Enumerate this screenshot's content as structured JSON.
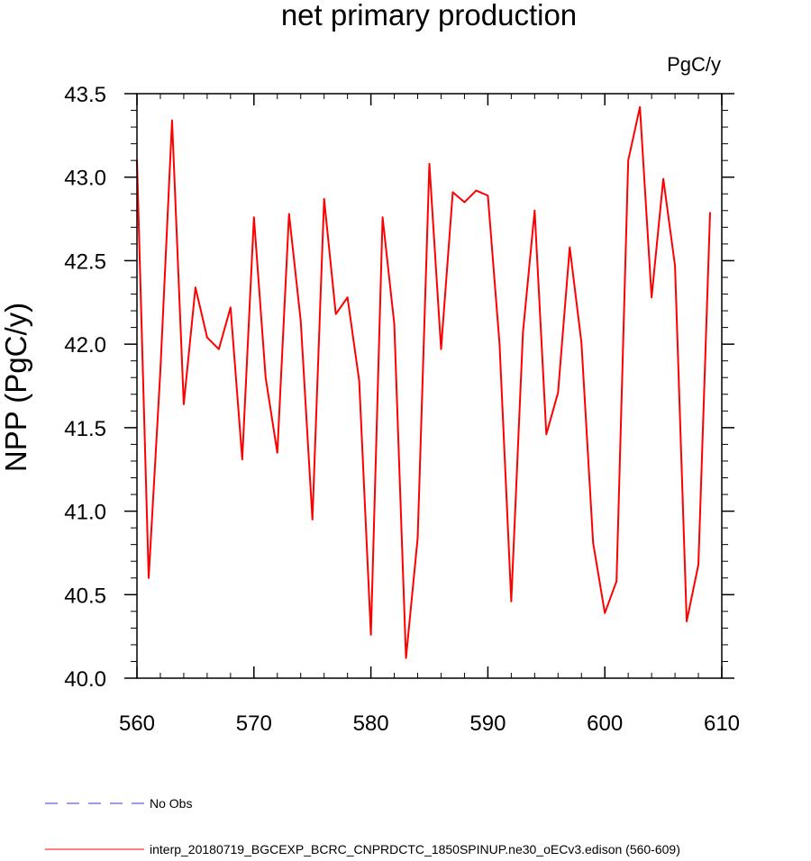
{
  "chart_data": {
    "type": "line",
    "title": "net primary production",
    "units": "PgC/y",
    "ylabel": "NPP  (PgC/y)",
    "xlabel": "",
    "xlim": [
      560,
      610
    ],
    "ylim": [
      40.0,
      43.5
    ],
    "x_ticks": [
      "560",
      "570",
      "580",
      "590",
      "600",
      "610"
    ],
    "y_ticks": [
      "40.0",
      "40.5",
      "41.0",
      "41.5",
      "42.0",
      "42.5",
      "43.0",
      "43.5"
    ],
    "grid": false,
    "legend_position": "bottom",
    "series": [
      {
        "name": "No Obs",
        "color": "#0000ff",
        "style": "dashed",
        "x": [],
        "values": []
      },
      {
        "name": "interp_20180719_BGCEXP_BCRC_CNPRDCTC_1850SPINUP.ne30_oECv3.edison (560-609)",
        "color": "#ff0000",
        "style": "solid",
        "x": [
          560,
          561,
          562,
          563,
          564,
          565,
          566,
          567,
          568,
          569,
          570,
          571,
          572,
          573,
          574,
          575,
          576,
          577,
          578,
          579,
          580,
          581,
          582,
          583,
          584,
          585,
          586,
          587,
          588,
          589,
          590,
          591,
          592,
          593,
          594,
          595,
          596,
          597,
          598,
          599,
          600,
          601,
          602,
          603,
          604,
          605,
          606,
          607,
          608,
          609
        ],
        "values": [
          43.1,
          40.6,
          41.84,
          43.34,
          41.64,
          42.34,
          42.04,
          41.97,
          42.22,
          41.31,
          42.76,
          41.8,
          41.35,
          42.78,
          42.14,
          40.95,
          42.87,
          42.18,
          42.28,
          41.78,
          40.26,
          42.76,
          42.12,
          40.12,
          40.84,
          43.08,
          41.97,
          42.91,
          42.85,
          42.92,
          42.89,
          42.0,
          40.46,
          42.07,
          42.8,
          41.46,
          41.71,
          42.58,
          42.01,
          40.81,
          40.39,
          40.58,
          43.1,
          43.42,
          42.28,
          42.99,
          42.47,
          40.34,
          40.68,
          42.79
        ]
      }
    ]
  }
}
